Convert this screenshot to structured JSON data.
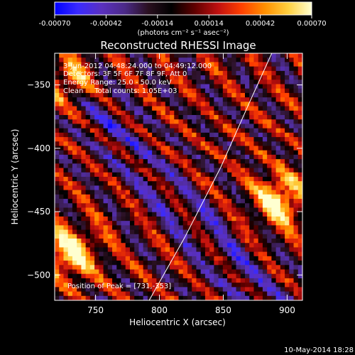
{
  "chart_data": {
    "type": "heatmap",
    "title": "Reconstructed RHESSI Image",
    "xlabel": "Heliocentric X (arcsec)",
    "ylabel": "Heliocentric Y (arcsec)",
    "xlim": [
      718,
      912
    ],
    "ylim": [
      -520,
      -325
    ],
    "x_ticks": [
      750,
      800,
      850,
      900
    ],
    "y_ticks": [
      -350,
      -400,
      -450,
      -500
    ],
    "colorbar": {
      "range": [
        -0.0007,
        0.0007
      ],
      "tick_labels": [
        "-0.00070",
        "-0.00042",
        "-0.00014",
        "0.00014",
        "0.00042",
        "0.00070"
      ],
      "unit_label": "(photons cm⁻² s⁻¹ asec⁻²)"
    },
    "annotations": [
      "3-Jun-2012 04:48:24.000 to 04:49:12.000",
      "Detectors: 3F 5F 6F 7F 8F 9F, Att 0",
      "Energy Range: 25.0 - 50.0 keV",
      "Clean     Total counts: 1.05E+03"
    ],
    "peak_label": "Position of Peak = [731,-353]",
    "peak_position": [
      731,
      -353
    ],
    "limb_line": [
      [
        792,
        -520
      ],
      [
        820,
        -470
      ],
      [
        848,
        -415
      ],
      [
        870,
        -365
      ],
      [
        888,
        -325
      ]
    ],
    "grid": false,
    "colors": {
      "background": "#000000",
      "limb": "#ffffff",
      "colormap": [
        "#0000ff",
        "#3a2aff",
        "#5a30c0",
        "#4b2a88",
        "#2a1020",
        "#000000",
        "#600000",
        "#c01010",
        "#ff4000",
        "#ff9000",
        "#ffd040",
        "#ffffd0"
      ]
    }
  },
  "footer": {
    "timestamp": "10-May-2014 18:28"
  }
}
